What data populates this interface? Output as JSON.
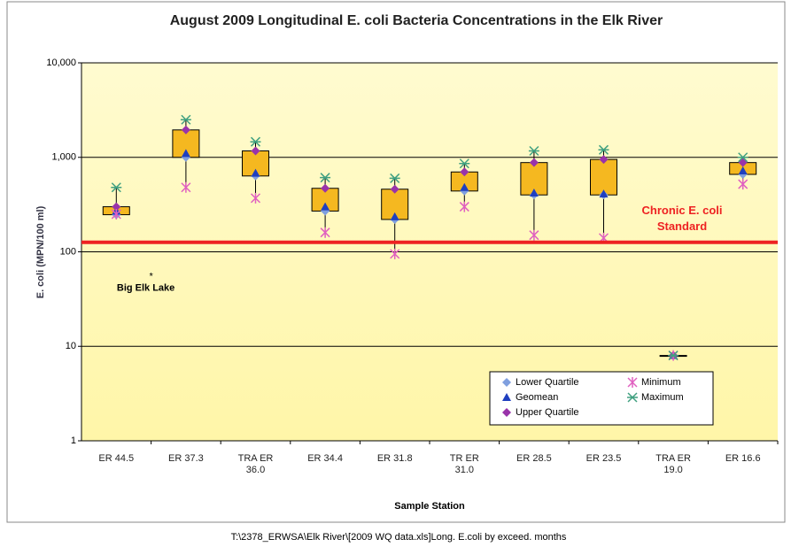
{
  "chart_data": {
    "type": "box",
    "title": "August 2009 Longitudinal E. coli Bacteria Concentrations in the Elk River",
    "x_label": "Sample Station",
    "y_label": "E. coli (MPN/100 ml)",
    "log_scale": true,
    "grid": true,
    "legend": "lower right",
    "categories": [
      "ER 44.5",
      "ER 37.3",
      "TRA ER 36.0",
      "ER 34.4",
      "ER 31.8",
      "TR ER 31.0",
      "ER 28.5",
      "ER 23.5",
      "TRA ER 19.0",
      "ER 16.6"
    ],
    "series": [
      {
        "name": "Lower Quartile",
        "color": "#7f9fdf",
        "values": [
          247,
          1000,
          635,
          270,
          220,
          440,
          400,
          400,
          8,
          660
        ]
      },
      {
        "name": "Geomean",
        "color": "#1f3fbf",
        "values": [
          270,
          1100,
          680,
          300,
          235,
          480,
          420,
          410,
          8,
          720
        ]
      },
      {
        "name": "Upper Quartile",
        "color": "#9933aa",
        "values": [
          300,
          1950,
          1170,
          470,
          460,
          700,
          880,
          950,
          8,
          880
        ]
      },
      {
        "name": "Minimum",
        "color": "#e060c0",
        "values": [
          250,
          480,
          370,
          160,
          95,
          300,
          150,
          140,
          8,
          520
        ]
      },
      {
        "name": "Maximum",
        "color": "#40a080",
        "values": [
          480,
          2500,
          1460,
          610,
          600,
          860,
          1170,
          1200,
          8,
          1000
        ]
      }
    ],
    "box_color": "#f5b820",
    "standard": {
      "label": "Chronic E. coli Standard",
      "value": 126,
      "color": "#ee2222"
    },
    "big_elk_lake": {
      "label": "Big Elk Lake",
      "value": 58
    },
    "ylim": [
      1,
      10000
    ],
    "yticks": [
      1,
      10,
      100,
      {
        "value": 1000,
        "label": "1,000"
      },
      {
        "value": 10000,
        "label": "10,000"
      }
    ]
  },
  "footer": "T:\\2378_ERWSA\\Elk River\\[2009 WQ data.xls]Long. E.coli by exceed. months"
}
